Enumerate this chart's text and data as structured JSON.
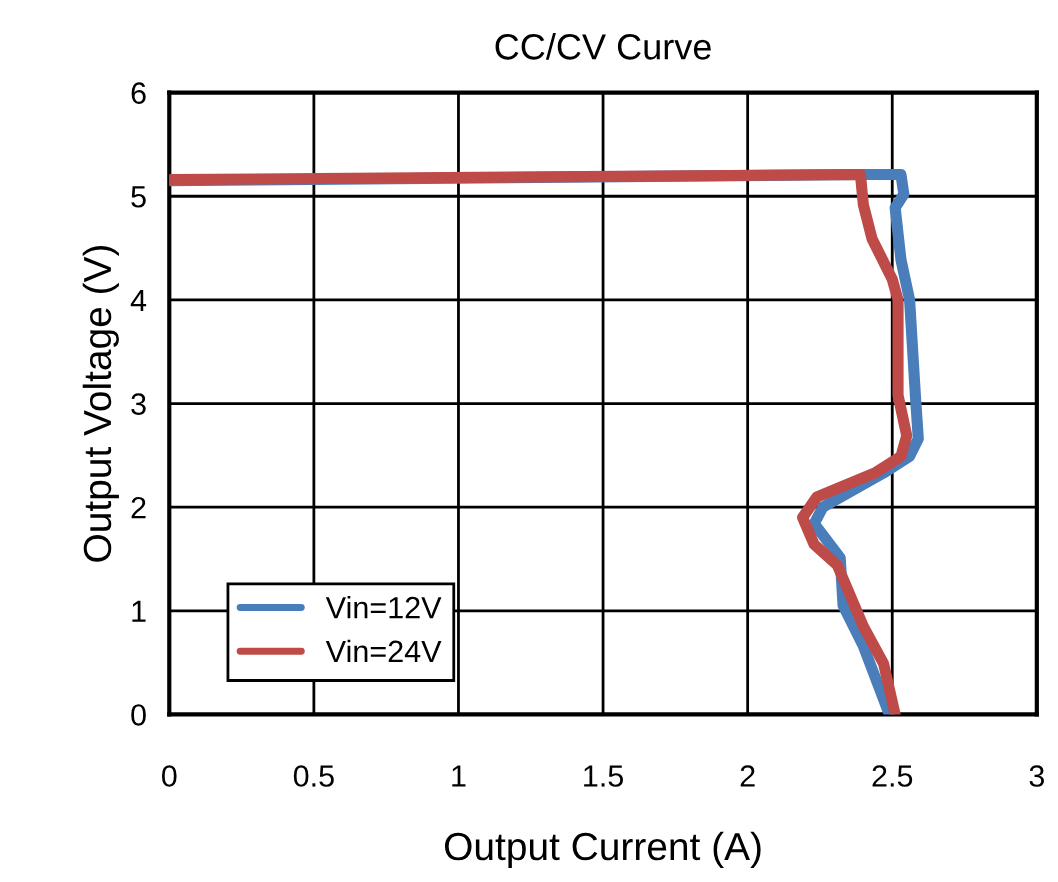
{
  "chart_data": {
    "type": "line",
    "title": "CC/CV Curve",
    "xlabel": "Output Current (A)",
    "ylabel": "Output Voltage (V)",
    "xlim": [
      0,
      3
    ],
    "ylim": [
      0,
      6
    ],
    "xticks": [
      0,
      0.5,
      1,
      1.5,
      2,
      2.5,
      3
    ],
    "yticks": [
      0,
      1,
      2,
      3,
      4,
      5,
      6
    ],
    "grid": true,
    "legend": "bottom left",
    "marker": "none",
    "line_style": "solid",
    "series": [
      {
        "name": "Vin=12V",
        "color": "#4a7ebb",
        "x": [
          0,
          2.4,
          2.53,
          2.54,
          2.51,
          2.53,
          2.56,
          2.58,
          2.59,
          2.56,
          2.47,
          2.26,
          2.23,
          2.32,
          2.33,
          2.4,
          2.49
        ],
        "values": [
          5.15,
          5.21,
          5.21,
          5.02,
          4.89,
          4.39,
          4.0,
          3.08,
          2.66,
          2.49,
          2.33,
          2.0,
          1.84,
          1.51,
          1.05,
          0.66,
          0
        ]
      },
      {
        "name": "Vin=24V",
        "color": "#be4b48",
        "x": [
          0,
          2.39,
          2.4,
          2.43,
          2.5,
          2.52,
          2.52,
          2.55,
          2.53,
          2.44,
          2.24,
          2.19,
          2.23,
          2.31,
          2.4,
          2.47,
          2.51
        ],
        "values": [
          5.16,
          5.21,
          4.92,
          4.59,
          4.2,
          4.0,
          3.08,
          2.69,
          2.49,
          2.33,
          2.1,
          1.9,
          1.64,
          1.44,
          0.85,
          0.49,
          0
        ]
      }
    ]
  }
}
